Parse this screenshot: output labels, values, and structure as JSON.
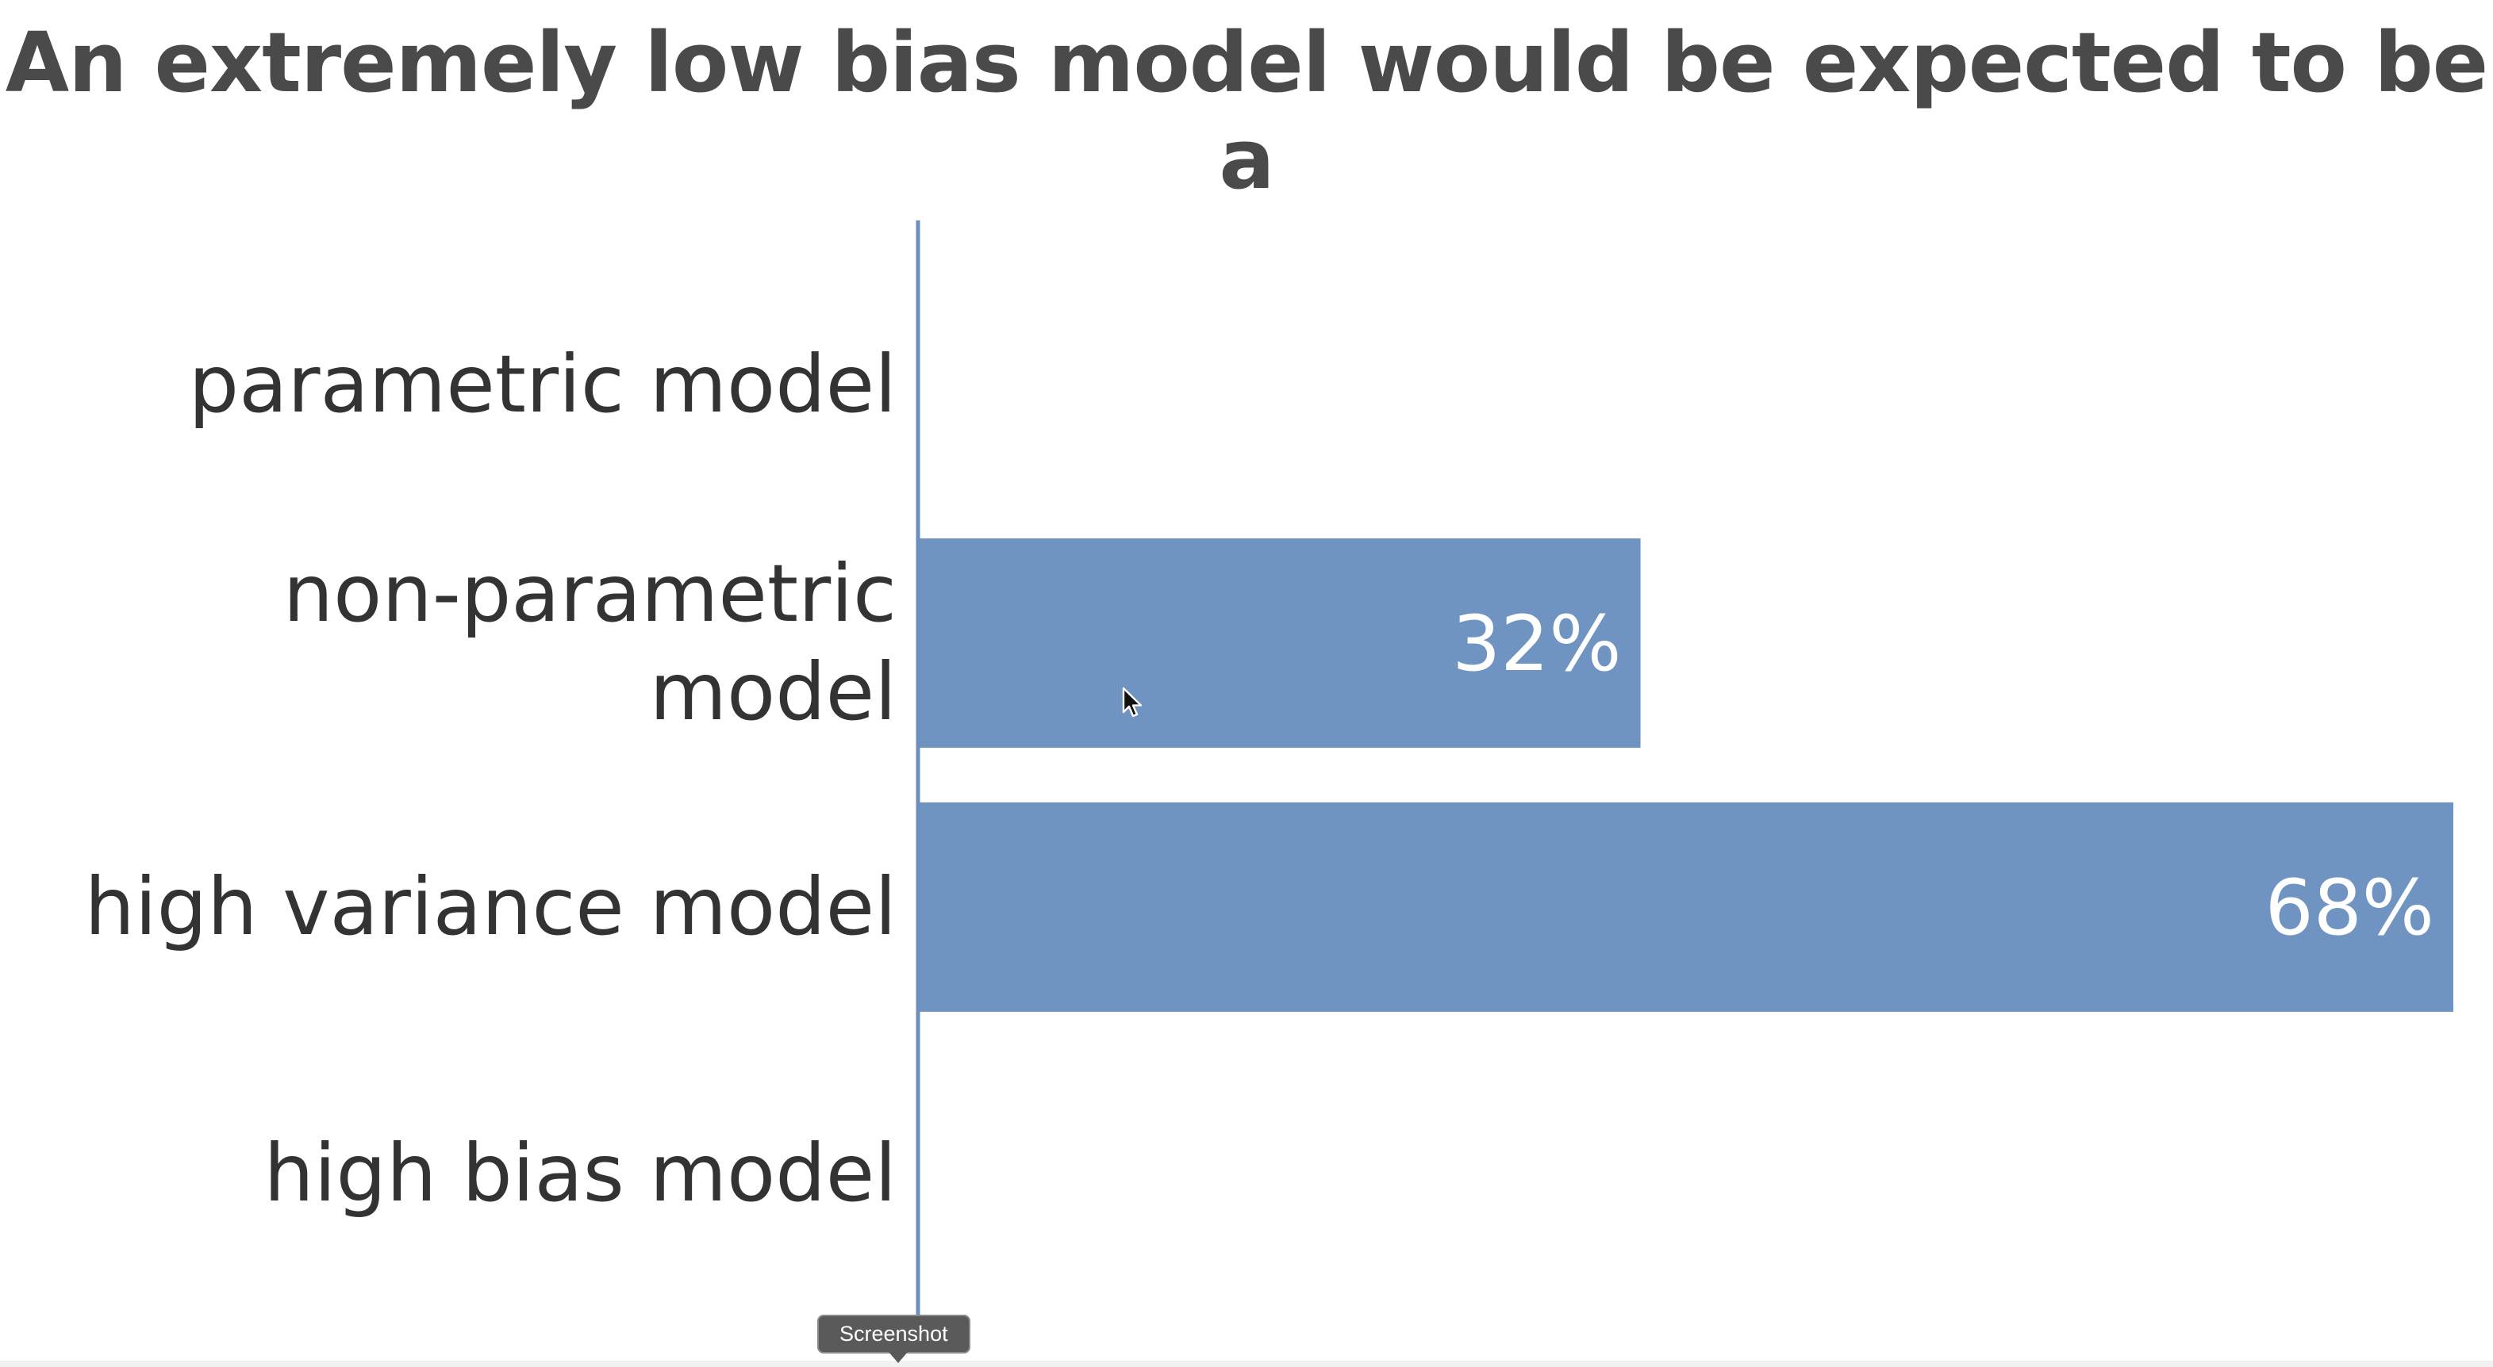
{
  "chart_data": {
    "type": "bar",
    "orientation": "horizontal",
    "title": "An extremely low bias model would be expected to be a",
    "categories": [
      "parametric model",
      "non-parametric model",
      "high variance model",
      "high bias model"
    ],
    "category_lines": [
      [
        "parametric model"
      ],
      [
        "non-parametric",
        "model"
      ],
      [
        "high variance model"
      ],
      [
        "high bias model"
      ]
    ],
    "values": [
      0,
      32,
      68,
      0
    ],
    "value_labels": [
      "",
      "32%",
      "68%",
      ""
    ],
    "xlim": [
      0,
      68
    ],
    "grid": false,
    "bar_color": "#7094c2",
    "axis_color": "#6a8fbf"
  },
  "tooltip": {
    "label": "Screenshot"
  },
  "cursor": {
    "icon": "arrow-cursor-icon"
  }
}
